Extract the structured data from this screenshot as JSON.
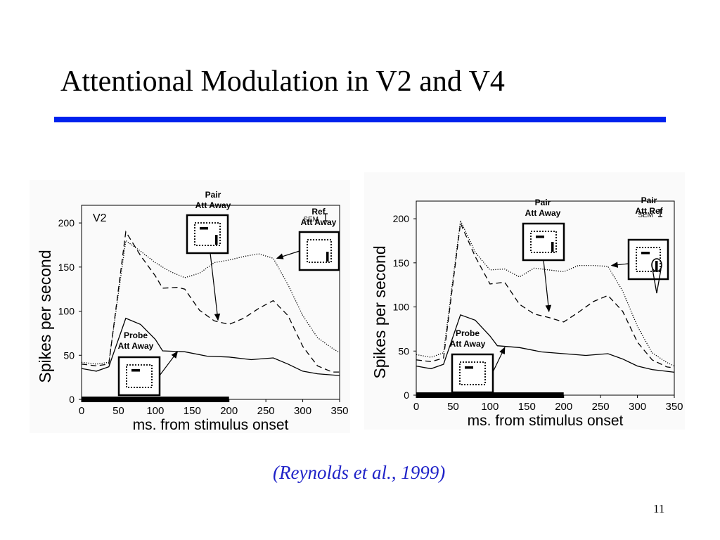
{
  "slide": {
    "title": "Attentional Modulation in V2 and V4",
    "citation": "(Reynolds et al., 1999)",
    "page_number": "11",
    "rule_color": "#0022ee",
    "citation_color": "#1f22c8"
  },
  "chart_data": [
    {
      "type": "line",
      "title": "V2",
      "xlabel": "ms. from stimulus onset",
      "ylabel": "Spikes per second",
      "xlim": [
        0,
        350
      ],
      "ylim": [
        0,
        220
      ],
      "xticks": [
        "0",
        "50",
        "100",
        "150",
        "200",
        "250",
        "300",
        "350"
      ],
      "yticks": [
        "0",
        "50",
        "100",
        "150",
        "200"
      ],
      "sem_label": "SEM",
      "stimulus_bar": [
        0,
        200
      ],
      "series": [
        {
          "name": "Ref Att Away",
          "style": "dotted",
          "points": [
            [
              0,
              42
            ],
            [
              20,
              40
            ],
            [
              37,
              42
            ],
            [
              60,
              180
            ],
            [
              80,
              168
            ],
            [
              100,
              155
            ],
            [
              120,
              145
            ],
            [
              140,
              138
            ],
            [
              160,
              143
            ],
            [
              180,
              155
            ],
            [
              200,
              158
            ],
            [
              220,
              162
            ],
            [
              240,
              165
            ],
            [
              260,
              160
            ],
            [
              280,
              130
            ],
            [
              300,
              95
            ],
            [
              320,
              70
            ],
            [
              340,
              58
            ],
            [
              350,
              53
            ]
          ]
        },
        {
          "name": "Pair Att Away",
          "style": "dashed",
          "points": [
            [
              0,
              40
            ],
            [
              20,
              38
            ],
            [
              37,
              40
            ],
            [
              60,
              190
            ],
            [
              80,
              163
            ],
            [
              100,
              140
            ],
            [
              110,
              126
            ],
            [
              130,
              127
            ],
            [
              140,
              125
            ],
            [
              160,
              101
            ],
            [
              180,
              89
            ],
            [
              200,
              85
            ],
            [
              220,
              92
            ],
            [
              240,
              103
            ],
            [
              260,
              112
            ],
            [
              280,
              95
            ],
            [
              300,
              60
            ],
            [
              320,
              38
            ],
            [
              340,
              31
            ],
            [
              350,
              31
            ]
          ]
        },
        {
          "name": "Probe Att Away",
          "style": "solid",
          "points": [
            [
              0,
              35
            ],
            [
              20,
              32
            ],
            [
              37,
              37
            ],
            [
              60,
              92
            ],
            [
              80,
              85
            ],
            [
              100,
              68
            ],
            [
              110,
              55
            ],
            [
              140,
              54
            ],
            [
              170,
              49
            ],
            [
              200,
              48
            ],
            [
              230,
              45
            ],
            [
              260,
              47
            ],
            [
              280,
              40
            ],
            [
              300,
              32
            ],
            [
              320,
              29
            ],
            [
              350,
              27
            ]
          ]
        }
      ],
      "callouts": [
        {
          "label_lines": [
            "Pair",
            "Att Away"
          ],
          "target": [
            185,
            90
          ]
        },
        {
          "label_lines": [
            "Ref",
            "Att Away"
          ],
          "target": [
            265,
            160
          ]
        },
        {
          "label_lines": [
            "Probe",
            "Att Away"
          ],
          "target": [
            130,
            54
          ]
        }
      ]
    },
    {
      "type": "line",
      "title": "",
      "xlabel": "ms. from stimulus onset",
      "ylabel": "Spikes per second",
      "xlim": [
        0,
        350
      ],
      "ylim": [
        0,
        220
      ],
      "xticks": [
        "0",
        "50",
        "100",
        "150",
        "200",
        "250",
        "300",
        "350"
      ],
      "yticks": [
        "0",
        "50",
        "100",
        "150",
        "200"
      ],
      "sem_label": "SEM",
      "stimulus_bar": [
        0,
        200
      ],
      "series": [
        {
          "name": "Pair Att Ref",
          "style": "dotted",
          "points": [
            [
              0,
              46
            ],
            [
              20,
              43
            ],
            [
              37,
              48
            ],
            [
              60,
              198
            ],
            [
              80,
              162
            ],
            [
              100,
              142
            ],
            [
              120,
              143
            ],
            [
              140,
              134
            ],
            [
              160,
              144
            ],
            [
              180,
              142
            ],
            [
              200,
              140
            ],
            [
              220,
              147
            ],
            [
              240,
              147
            ],
            [
              260,
              146
            ],
            [
              280,
              118
            ],
            [
              300,
              78
            ],
            [
              320,
              48
            ],
            [
              340,
              37
            ],
            [
              350,
              33
            ]
          ]
        },
        {
          "name": "Pair Att Away",
          "style": "dashed",
          "points": [
            [
              0,
              40
            ],
            [
              20,
              38
            ],
            [
              37,
              42
            ],
            [
              60,
              195
            ],
            [
              80,
              157
            ],
            [
              100,
              126
            ],
            [
              120,
              128
            ],
            [
              140,
              103
            ],
            [
              160,
              92
            ],
            [
              180,
              88
            ],
            [
              200,
              83
            ],
            [
              220,
              94
            ],
            [
              240,
              106
            ],
            [
              260,
              113
            ],
            [
              280,
              95
            ],
            [
              300,
              60
            ],
            [
              320,
              40
            ],
            [
              340,
              32
            ],
            [
              350,
              31
            ]
          ]
        },
        {
          "name": "Probe Att Away",
          "style": "solid",
          "points": [
            [
              0,
              33
            ],
            [
              20,
              30
            ],
            [
              37,
              35
            ],
            [
              60,
              91
            ],
            [
              80,
              85
            ],
            [
              100,
              67
            ],
            [
              110,
              56
            ],
            [
              140,
              54
            ],
            [
              170,
              49
            ],
            [
              200,
              47
            ],
            [
              230,
              45
            ],
            [
              260,
              47
            ],
            [
              280,
              41
            ],
            [
              300,
              33
            ],
            [
              320,
              29
            ],
            [
              350,
              26
            ]
          ]
        }
      ],
      "callouts": [
        {
          "label_lines": [
            "Pair",
            "Att Away"
          ],
          "target": [
            180,
            95
          ]
        },
        {
          "label_lines": [
            "Pair",
            "Att Ref"
          ],
          "target": [
            265,
            147
          ]
        },
        {
          "label_lines": [
            "Probe",
            "Att Away"
          ],
          "target": [
            120,
            54
          ]
        }
      ]
    }
  ]
}
